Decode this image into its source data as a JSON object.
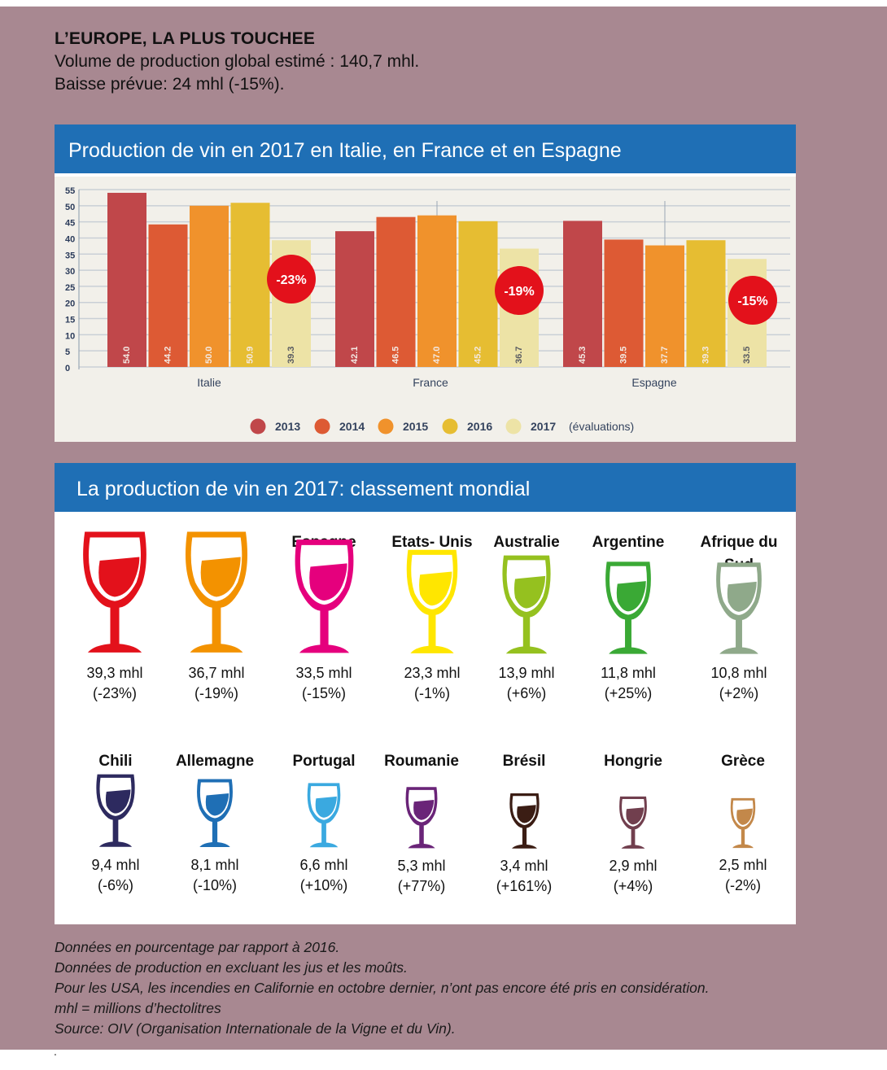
{
  "header": {
    "title": "L’EUROPE, LA PLUS TOUCHEE",
    "line1": "Volume de production global estimé : 140,7 mhl.",
    "line2": "Baisse prévue: 24 mhl (-15%)."
  },
  "panel1": {
    "title": "Production de vin en 2017 en Italie, en France et en Espagne"
  },
  "panel2": {
    "title": "La production de vin en 2017: classement mondial"
  },
  "chart_data": {
    "type": "bar",
    "categories": [
      "Italie",
      "France",
      "Espagne"
    ],
    "series": [
      {
        "name": "2013",
        "values": [
          54.0,
          42.1,
          45.3
        ],
        "color": "#c0474a"
      },
      {
        "name": "2014",
        "values": [
          44.2,
          46.5,
          39.5
        ],
        "color": "#dd5a34"
      },
      {
        "name": "2015",
        "values": [
          50.0,
          47.0,
          37.7
        ],
        "color": "#f0922c"
      },
      {
        "name": "2016",
        "values": [
          50.9,
          45.2,
          39.3
        ],
        "color": "#e6bd32"
      },
      {
        "name": "2017",
        "values": [
          39.3,
          36.7,
          33.5
        ],
        "color": "#ede3a6"
      }
    ],
    "value_labels": [
      [
        "54.0",
        "44.2",
        "50.0",
        "50.9",
        "39.3"
      ],
      [
        "42.1",
        "46.5",
        "47.0",
        "45.2",
        "36.7"
      ],
      [
        "45.3",
        "39.5",
        "37.7",
        "39.3",
        "33.5"
      ]
    ],
    "badges": [
      "-23%",
      "-19%",
      "-15%"
    ],
    "yticks": [
      0,
      5,
      10,
      15,
      20,
      25,
      30,
      35,
      40,
      45,
      50,
      55
    ],
    "ylim": [
      0,
      55
    ],
    "legend_note": "(évaluations)",
    "legend_position": "bottom",
    "grid": true
  },
  "ranking": [
    {
      "name": "Italie",
      "volume": "39,3 mhl",
      "change": "(-23%)",
      "color": "#e3111b"
    },
    {
      "name": "France",
      "volume": "36,7 mhl",
      "change": "(-19%)",
      "color": "#f39200"
    },
    {
      "name": "Espagne",
      "volume": "33,5 mhl",
      "change": "(-15%)",
      "color": "#e5007d"
    },
    {
      "name": "Etats- Unis",
      "volume": "23,3 mhl",
      "change": "(-1%)",
      "color": "#ffe600"
    },
    {
      "name": "Australie",
      "volume": "13,9 mhl",
      "change": "(+6%)",
      "color": "#95c11f"
    },
    {
      "name": "Argentine",
      "volume": "11,8 mhl",
      "change": "(+25%)",
      "color": "#3aa935"
    },
    {
      "name": "Afrique du Sud",
      "volume": "10,8 mhl",
      "change": "(+2%)",
      "color": "#8fa98a"
    },
    {
      "name": "Chili",
      "volume": "9,4 mhl",
      "change": "(-6%)",
      "color": "#2d2a5f"
    },
    {
      "name": "Allemagne",
      "volume": "8,1 mhl",
      "change": "(-10%)",
      "color": "#1f6fb5"
    },
    {
      "name": "Portugal",
      "volume": "6,6 mhl",
      "change": "(+10%)",
      "color": "#3aa9e0"
    },
    {
      "name": "Roumanie",
      "volume": "5,3 mhl",
      "change": "(+77%)",
      "color": "#6a2478"
    },
    {
      "name": "Brésil",
      "volume": "3,4 mhl",
      "change": "(+161%)",
      "color": "#3b1d14"
    },
    {
      "name": "Hongrie",
      "volume": "2,9 mhl",
      "change": "(+4%)",
      "color": "#713f4e"
    },
    {
      "name": "Grèce",
      "volume": "2,5 mhl",
      "change": "(-2%)",
      "color": "#c3884a"
    }
  ],
  "notes": [
    "Données en pourcentage par rapport à 2016.",
    "Données de production en excluant les jus et les moûts.",
    "Pour les USA, les incendies en Californie en octobre dernier, n’ont pas encore été pris en considération.",
    "mhl = millions d’hectolitres",
    "Source: OIV (Organisation Internationale de la Vigne et du Vin)."
  ],
  "trailing_mark": "."
}
